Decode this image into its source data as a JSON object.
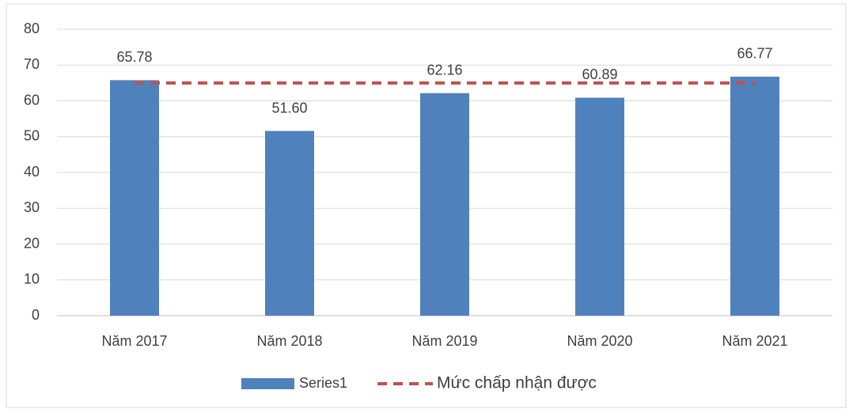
{
  "chart_data": {
    "type": "bar",
    "categories": [
      "Năm 2017",
      "Năm 2018",
      "Năm 2019",
      "Năm 2020",
      "Năm 2021"
    ],
    "series": [
      {
        "name": "Series1",
        "color": "#4f81bd",
        "values": [
          65.78,
          51.6,
          62.16,
          60.89,
          66.77
        ],
        "value_labels": [
          "65.78",
          "51.60",
          "62.16",
          "60.89",
          "66.77"
        ]
      },
      {
        "name": "Mức chấp nhận được",
        "type": "line",
        "dashed": true,
        "color": "#c0504d",
        "values": [
          65,
          65,
          65,
          65,
          65
        ]
      }
    ],
    "ylim": [
      0,
      80
    ],
    "yticks": [
      0,
      10,
      20,
      30,
      40,
      50,
      60,
      70,
      80
    ],
    "grid": true,
    "legend": "bottom"
  }
}
